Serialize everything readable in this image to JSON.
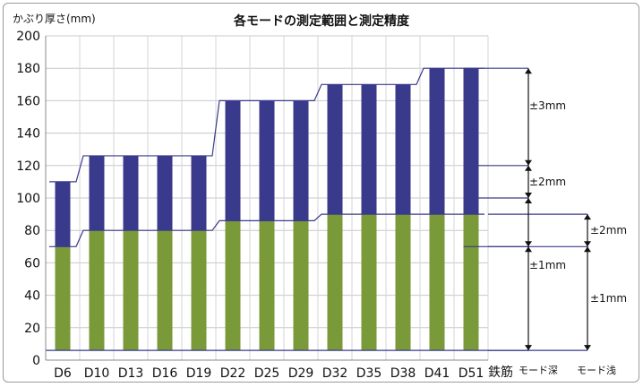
{
  "chart_data": {
    "type": "bar",
    "title": "各モードの測定範囲と測定精度",
    "ylabel": "かぶり厚さ(mm)",
    "xlabel": "鉄筋",
    "ylim": [
      0,
      200
    ],
    "yticks": [
      "0",
      "20",
      "40",
      "60",
      "80",
      "100",
      "120",
      "140",
      "160",
      "180",
      "200"
    ],
    "categories": [
      "D6",
      "D10",
      "D13",
      "D16",
      "D19",
      "D22",
      "D25",
      "D29",
      "D32",
      "D35",
      "D38",
      "D41",
      "D51"
    ],
    "series": [
      {
        "name": "モード浅",
        "color": "#7a9a3a",
        "values": [
          70,
          80,
          80,
          80,
          80,
          86,
          86,
          86,
          90,
          90,
          90,
          90,
          90
        ]
      },
      {
        "name": "モード深",
        "color": "#3a3a8c",
        "values": [
          110,
          126,
          126,
          126,
          126,
          160,
          160,
          160,
          170,
          170,
          170,
          180,
          180
        ]
      }
    ],
    "range_min": 6,
    "accuracy_notes": {
      "deep_upper": "±3mm",
      "deep_middle": "±2mm",
      "deep_lower": "±1mm",
      "shallow_upper": "±2mm",
      "shallow_lower": "±1mm"
    },
    "deep_boundaries": [
      180,
      120,
      100,
      70,
      6
    ],
    "shallow_boundaries": [
      90,
      70,
      6
    ],
    "footer_labels": {
      "deep": "モード深",
      "shallow": "モード浅"
    },
    "grid": true
  }
}
